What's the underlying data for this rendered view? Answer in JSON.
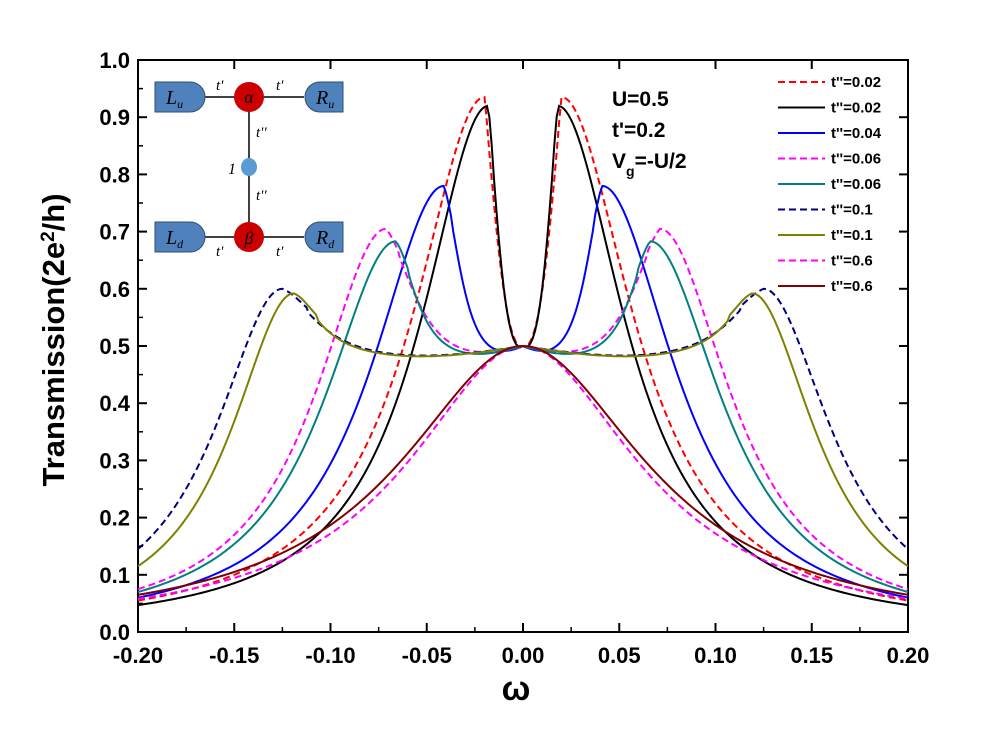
{
  "chart_data": {
    "type": "line",
    "xlabel": "ω",
    "ylabel_main": "Transmission(2e",
    "ylabel_sup": "2",
    "ylabel_end": "/h)",
    "xlim": [
      -0.2,
      0.2
    ],
    "ylim": [
      0.0,
      1.0
    ],
    "x_ticks": [
      "-0.20",
      "-0.15",
      "-0.10",
      "-0.05",
      "0.00",
      "0.05",
      "0.10",
      "0.15",
      "0.20"
    ],
    "x_tick_values": [
      -0.2,
      -0.15,
      -0.1,
      -0.05,
      0.0,
      0.05,
      0.1,
      0.15,
      0.2
    ],
    "y_ticks": [
      "0.0",
      "0.1",
      "0.2",
      "0.3",
      "0.4",
      "0.5",
      "0.6",
      "0.7",
      "0.8",
      "0.9",
      "1.0"
    ],
    "y_tick_values": [
      0.0,
      0.1,
      0.2,
      0.3,
      0.4,
      0.5,
      0.6,
      0.7,
      0.8,
      0.9,
      1.0
    ],
    "grid": false,
    "legend_position": "top-right",
    "annotations": {
      "u": "U=0.5",
      "tp": "t'=0.2",
      "vg_main": "V",
      "vg_sub": "g",
      "vg_end": "=-U/2"
    },
    "inset": {
      "lu_main": "L",
      "lu_sub": "u",
      "ru_main": "R",
      "ru_sub": "u",
      "ld_main": "L",
      "ld_sub": "d",
      "rd_main": "R",
      "rd_sub": "d",
      "alpha": "α",
      "beta": "β",
      "tp": "t'",
      "tpp": "t''",
      "dot_label": "1",
      "colors": {
        "lead": "#4f81bd",
        "dot": "#cc0000",
        "side_dot": "#5b9bd5"
      }
    },
    "series": [
      {
        "name": "t''=0.02",
        "color": "#ff0000",
        "dash": "dashed",
        "peak_pos": 0.02,
        "peak_height": 0.935,
        "peak_width": 0.021,
        "edge_value": 0.055
      },
      {
        "name": "t''=0.02",
        "color": "#000000",
        "dash": "solid",
        "peak_pos": 0.018,
        "peak_height": 0.92,
        "peak_width": 0.0135,
        "edge_value": 0.047
      },
      {
        "name": "t''=0.04",
        "color": "#0000ff",
        "dash": "solid",
        "peak_pos": 0.041,
        "peak_height": 0.78,
        "peak_width": 0.0145,
        "edge_value": 0.06
      },
      {
        "name": "t''=0.06",
        "color": "#ff00ff",
        "dash": "dashed",
        "peak_pos": 0.071,
        "peak_height": 0.705,
        "peak_width": 0.024,
        "edge_value": 0.075
      },
      {
        "name": "t''=0.06",
        "color": "#008080",
        "dash": "solid",
        "peak_pos": 0.066,
        "peak_height": 0.683,
        "peak_width": 0.0155,
        "edge_value": 0.07
      },
      {
        "name": "t''=0.1",
        "color": "#000080",
        "dash": "dashed",
        "peak_pos": 0.125,
        "peak_height": 0.6,
        "peak_width": 0.025,
        "edge_value": 0.145
      },
      {
        "name": "t''=0.1",
        "color": "#808000",
        "dash": "solid",
        "peak_pos": 0.119,
        "peak_height": 0.592,
        "peak_width": 0.0175,
        "edge_value": 0.115
      },
      {
        "name": "t''=0.6",
        "color": "#ff00ff",
        "dash": "dashed",
        "peak_pos": 0.0,
        "peak_height": 0.5,
        "peak_width": 0.1,
        "edge_value": 0.058
      },
      {
        "name": "t''=0.6",
        "color": "#800000",
        "dash": "solid",
        "peak_pos": 0.0,
        "peak_height": 0.5,
        "peak_width": 0.1,
        "edge_value": 0.065
      }
    ]
  }
}
